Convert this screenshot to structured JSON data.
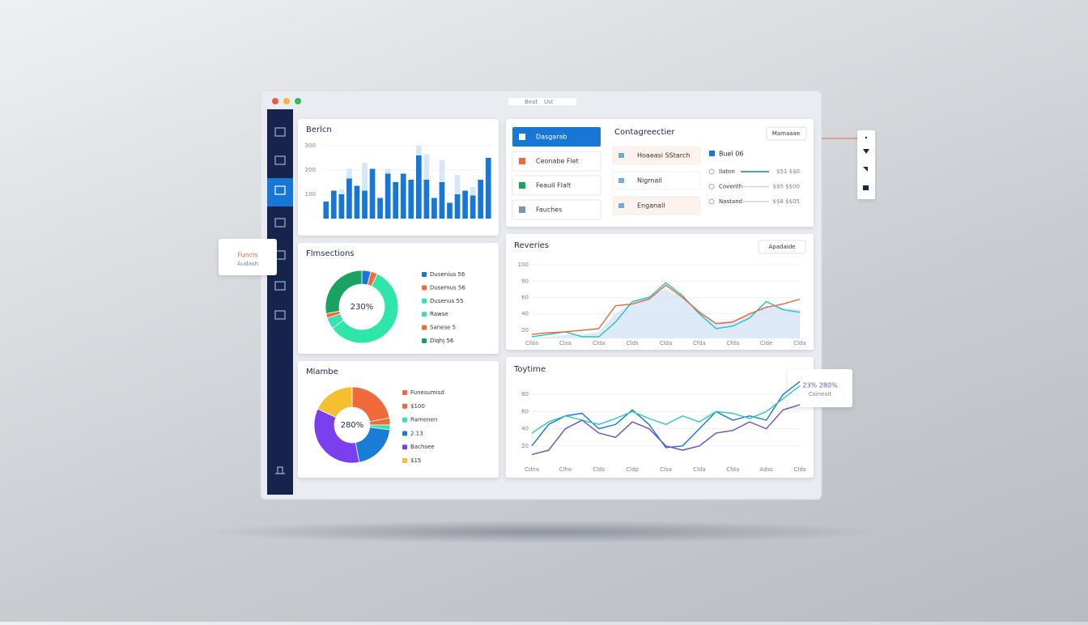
{
  "window": {
    "tabs": [
      "Beat",
      "Ust"
    ]
  },
  "float_card": {
    "title": "Funcis",
    "subtitle": "Audash"
  },
  "tooltip": {
    "title": "23% 280%",
    "subtitle": "Coinexit"
  },
  "bars_panel": {
    "title": "Berlcn",
    "color": "#1677d6",
    "bg_color": "#d6e7f7",
    "ylim": [
      0,
      300
    ],
    "yticks": [
      100,
      200,
      300
    ],
    "values": [
      70,
      115,
      100,
      165,
      135,
      115,
      205,
      85,
      185,
      150,
      185,
      160,
      260,
      160,
      85,
      150,
      65,
      100,
      115,
      95,
      160,
      250
    ],
    "background_values": [
      null,
      null,
      120,
      205,
      null,
      230,
      null,
      null,
      205,
      null,
      null,
      null,
      300,
      265,
      null,
      240,
      null,
      180,
      null,
      130,
      null,
      null
    ]
  },
  "donut1": {
    "title": "Flmsections",
    "center": "230%",
    "items": [
      {
        "name": "Dusenius 56",
        "color": "#1677d6",
        "value": 4
      },
      {
        "name": "Dusemus 56",
        "color": "#f06a3a",
        "value": 3
      },
      {
        "name": "Dusenus 55",
        "color": "#2ee6a8",
        "value": 58
      },
      {
        "name": "Rawse",
        "color": "#38e0b4",
        "value": 5
      },
      {
        "name": "Sanese 5",
        "color": "#f06a3a",
        "value": 2
      },
      {
        "name": "Diqhj 56",
        "color": "#1aa260",
        "value": 28
      }
    ]
  },
  "donut2": {
    "title": "Mlambe",
    "center": "280%",
    "items": [
      {
        "name": "Funesumisd",
        "color": "#f06a3a",
        "value": 22
      },
      {
        "name": "$100",
        "color": "#f06a3a",
        "value": 3
      },
      {
        "name": "Ramenen",
        "color": "#2ee6a8",
        "value": 2
      },
      {
        "name": "2.13",
        "color": "#1a7ed8",
        "value": 20
      },
      {
        "name": "Bachsee",
        "color": "#7b3ff0",
        "value": 35
      },
      {
        "name": "$15",
        "color": "#f5bf30",
        "value": 18
      }
    ]
  },
  "nav_panel": {
    "title": "Contagreectier",
    "button": "Mamaaae",
    "nav": [
      "Dasgarab",
      "Ceonabe Flet",
      "Feaull Flalt",
      "Fauches"
    ],
    "items": [
      "Hoaeasi SStarch",
      "Nigrnail",
      "Enganall"
    ],
    "stats_title": "Buel 06",
    "stats": [
      {
        "label": "Ilaton",
        "value": "$51 $$0"
      },
      {
        "label": "Coventh",
        "value": "$$5 $$00"
      },
      {
        "label": "Nastand",
        "value": "$$8 $$05"
      }
    ]
  },
  "revenue": {
    "title": "Reveries",
    "button": "Apadaide",
    "ylim": [
      10,
      105
    ],
    "yticks": [
      20,
      40,
      60,
      80,
      100
    ],
    "categories": [
      "Cfda",
      null,
      "Clsa",
      null,
      "Clda",
      null,
      "Clds",
      null,
      "Clda",
      null,
      "Cfda",
      null,
      "Cfda",
      null,
      "Clde",
      null,
      "Clda"
    ],
    "area": {
      "color": "#c9dcf3",
      "values": [
        10,
        12,
        14,
        15,
        18,
        40,
        55,
        62,
        70,
        60,
        45,
        30,
        32,
        40,
        50,
        48,
        45
      ]
    },
    "series": [
      {
        "color": "#1fc2c2",
        "values": [
          12,
          15,
          18,
          12,
          12,
          30,
          55,
          60,
          78,
          62,
          40,
          22,
          25,
          35,
          55,
          45,
          42
        ]
      },
      {
        "color": "#e8673a",
        "values": [
          15,
          17,
          18,
          20,
          22,
          50,
          52,
          58,
          75,
          60,
          42,
          28,
          30,
          40,
          48,
          52,
          58
        ]
      }
    ]
  },
  "toytime": {
    "title": "Toytime",
    "ylim": [
      0,
      100
    ],
    "yticks": [
      20,
      40,
      60,
      80
    ],
    "categories": [
      "Cdna",
      null,
      "Clhe",
      null,
      "Clds",
      null,
      "Cldp",
      null,
      "Clsa",
      null,
      "Clda",
      null,
      "Cfda",
      null,
      "Adss",
      null,
      "Clds"
    ],
    "series": [
      {
        "color": "#1677d6",
        "values": [
          20,
          45,
          55,
          58,
          40,
          45,
          62,
          45,
          18,
          20,
          40,
          60,
          50,
          55,
          50,
          80,
          95
        ]
      },
      {
        "color": "#2ec8b8",
        "values": [
          35,
          48,
          55,
          50,
          45,
          52,
          60,
          52,
          45,
          55,
          48,
          60,
          58,
          52,
          60,
          75,
          90
        ]
      },
      {
        "color": "#6a4fc8",
        "values": [
          10,
          15,
          40,
          50,
          35,
          30,
          48,
          40,
          20,
          15,
          20,
          35,
          38,
          48,
          40,
          62,
          68
        ]
      }
    ]
  }
}
